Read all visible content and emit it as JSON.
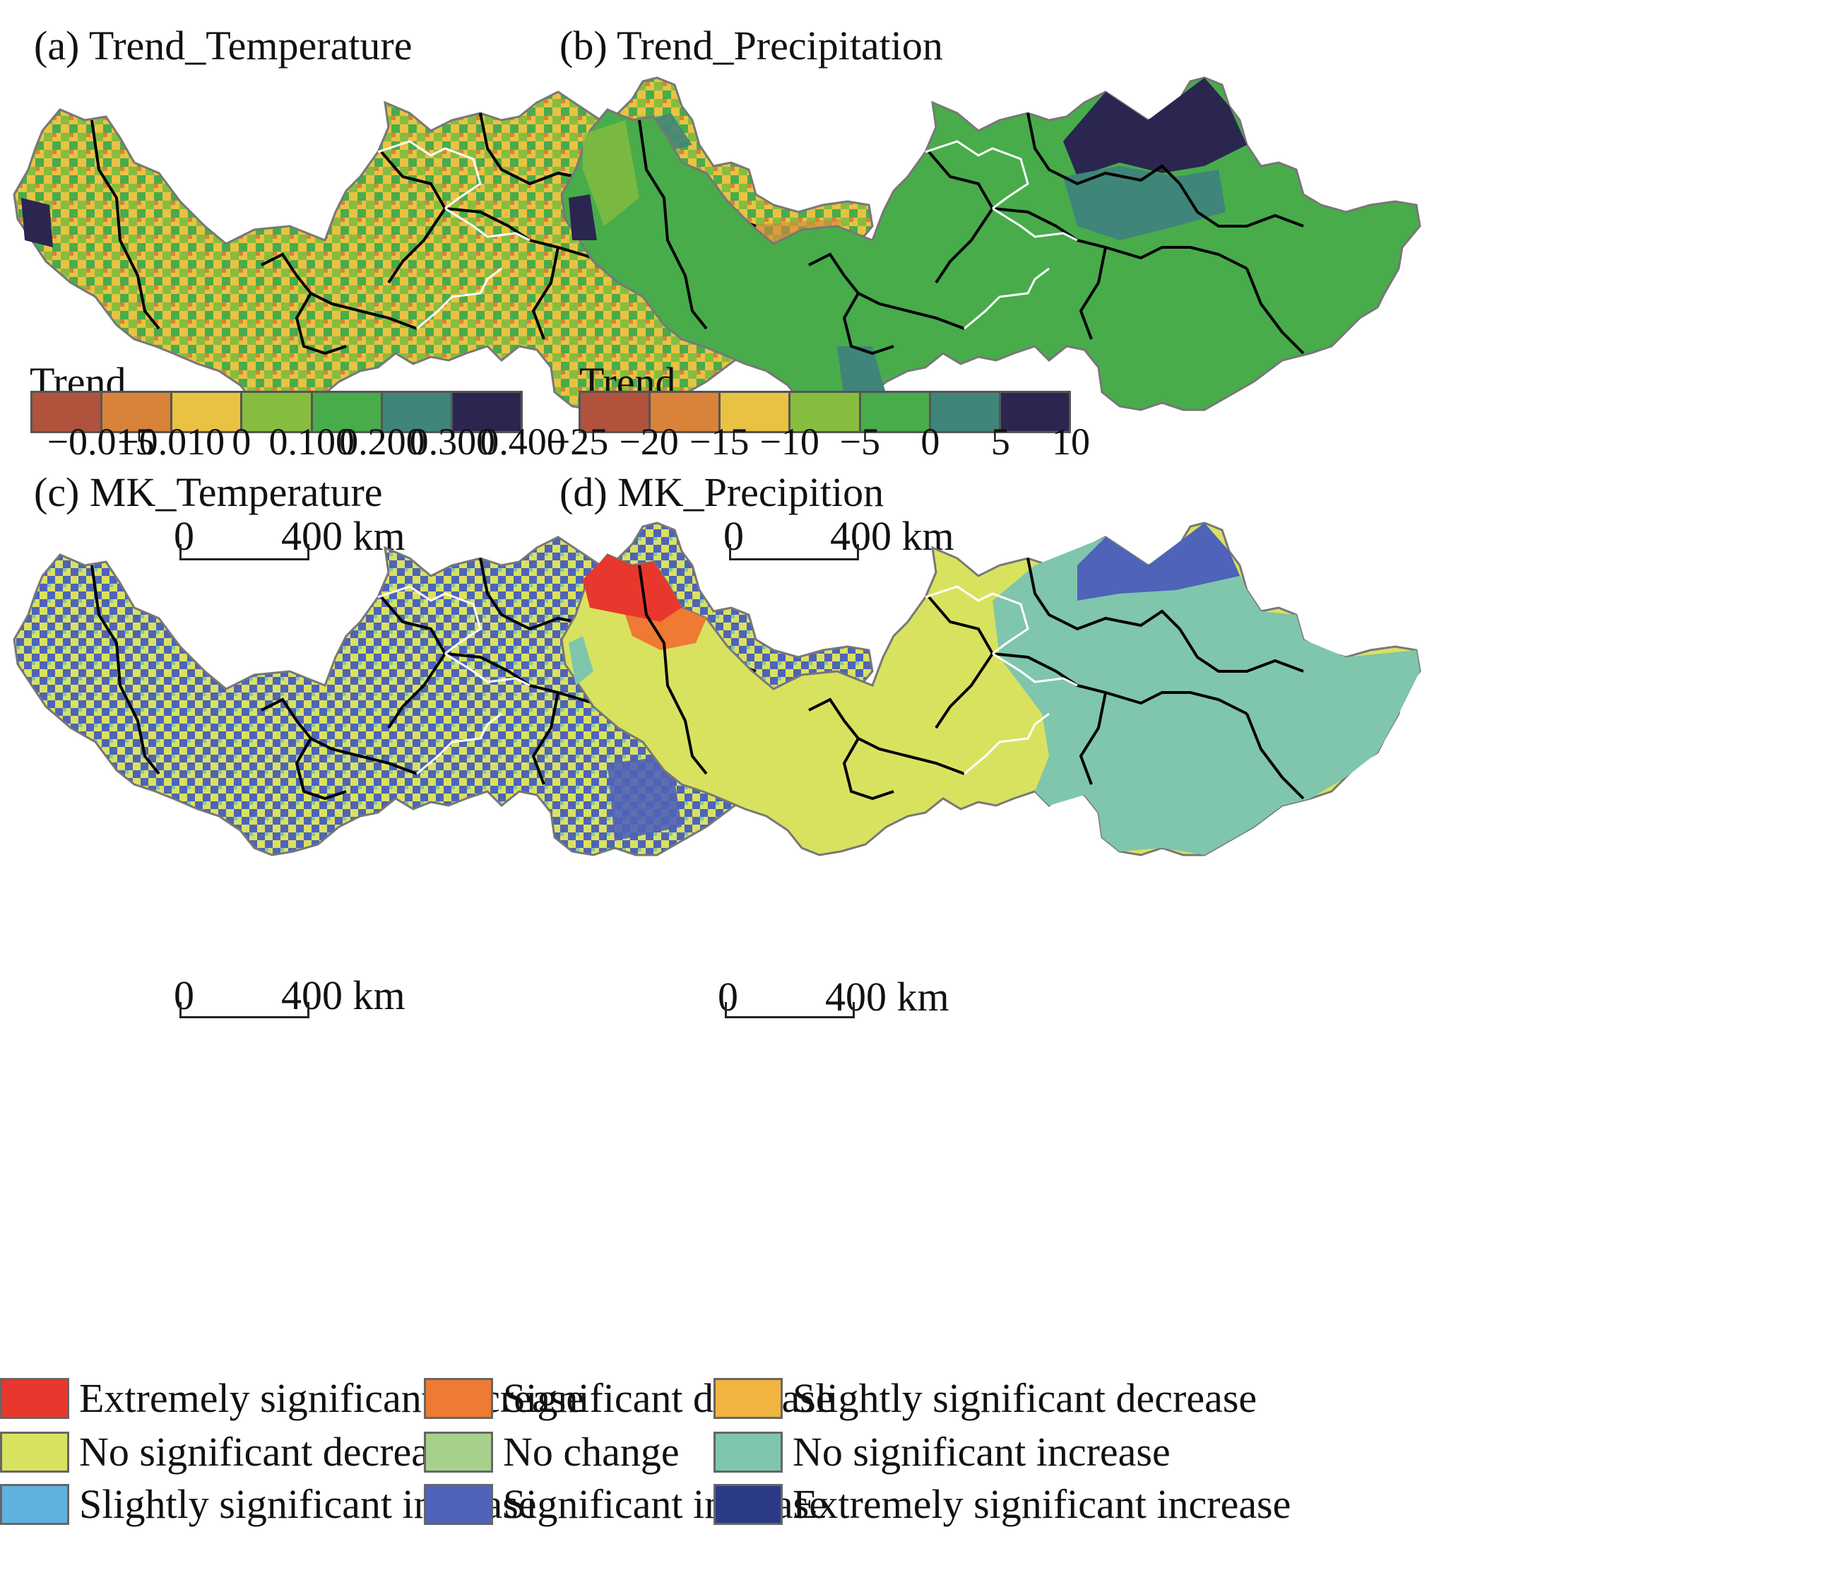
{
  "panels": {
    "a": {
      "title": "(a) Trend_Temperature"
    },
    "b": {
      "title": "(b) Trend_Precipitation"
    },
    "c": {
      "title": "(c) MK_Temperature"
    },
    "d": {
      "title": "(d) MK_Precipition"
    }
  },
  "scale_bar": {
    "zero": "0",
    "end": "400 km"
  },
  "temperature_trend_legend": {
    "title": "Trend",
    "colors": [
      "#b0523c",
      "#d8823a",
      "#e9c243",
      "#86bd3f",
      "#48ac4b",
      "#3f857a",
      "#2a2650"
    ],
    "ticks": [
      "−0.015",
      "−0.010",
      "0",
      "0.100",
      "0.200",
      "0.300",
      "0.400"
    ]
  },
  "precipitation_trend_legend": {
    "title": "Trend",
    "colors": [
      "#b0523c",
      "#d8823a",
      "#e9c243",
      "#86bd3f",
      "#48ac4b",
      "#3f857a",
      "#2a2650"
    ],
    "ticks": [
      "−25",
      "−20",
      "−15",
      "−10",
      "−5",
      "0",
      "5",
      "10"
    ]
  },
  "mk_legend": {
    "items": [
      {
        "label": "Extremely significant decrease",
        "color": "#e8372c"
      },
      {
        "label": "Significant decrease",
        "color": "#ee7a33"
      },
      {
        "label": "Slightly significant decrease",
        "color": "#f2b440"
      },
      {
        "label": "No significant decrease",
        "color": "#d9e25f"
      },
      {
        "label": "No change",
        "color": "#a8d08d"
      },
      {
        "label": "No significant increase",
        "color": "#7fc6ad"
      },
      {
        "label": "Slightly significant increase",
        "color": "#5fb2de"
      },
      {
        "label": "Significant increase",
        "color": "#4f63b8"
      },
      {
        "label": "Extremely significant increase",
        "color": "#2a3a86"
      }
    ]
  }
}
